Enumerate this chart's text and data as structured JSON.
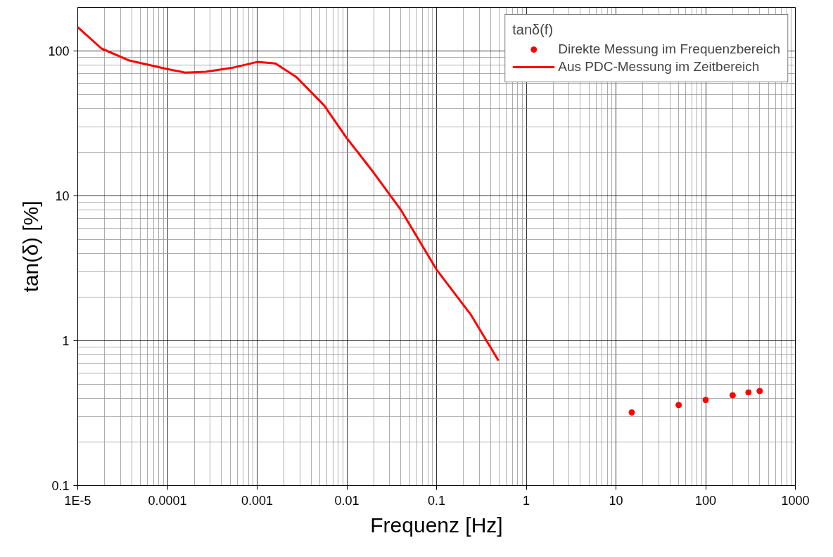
{
  "chart_data": {
    "type": "line",
    "xlabel": "Frequenz [Hz]",
    "ylabel": "tan(δ) [%]",
    "legend_title": "tanδ(f)",
    "log": "xy",
    "grid": true,
    "legend": "top right",
    "xlim": [
      1e-05,
      1000
    ],
    "ylim": [
      0.1,
      200
    ],
    "xticks": [
      {
        "value": 1e-05,
        "label": "1E-5"
      },
      0.0001,
      0.001,
      0.01,
      0.1,
      1,
      10,
      100,
      1000
    ],
    "yticks": [
      0.1,
      1,
      10,
      100
    ],
    "series": [
      {
        "name": "Direkte Messung im Frequenzbereich",
        "type": "scatter",
        "marker": "circle",
        "color": "#ff0000",
        "x": [
          15,
          50,
          100,
          200,
          300,
          400
        ],
        "values": [
          0.32,
          0.36,
          0.39,
          0.42,
          0.44,
          0.45
        ]
      },
      {
        "name": "Aus PDC-Messung im Zeitbereich",
        "line_style": "solid",
        "color": "#ff0000",
        "x": [
          1e-05,
          1.84e-05,
          3.76e-05,
          0.0001,
          0.000157,
          0.000269,
          0.00055,
          0.001,
          0.0016,
          0.00275,
          0.0056,
          0.01,
          0.0195,
          0.04,
          0.1,
          0.24,
          0.49
        ],
        "values": [
          146,
          104,
          86,
          75,
          71,
          72,
          77,
          84,
          82,
          66,
          42,
          25,
          14.7,
          8.0,
          3.1,
          1.52,
          0.73
        ]
      }
    ]
  }
}
